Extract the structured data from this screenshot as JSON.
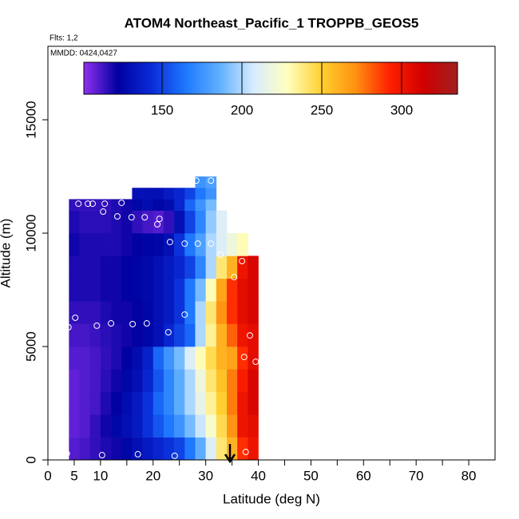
{
  "chart_data": {
    "type": "curtain",
    "title": "ATOM4 Northeast_Pacific_1 TROPPB_GEOS5",
    "flights_label": "Flts: 1,2",
    "dates_label": "MMDD: 0424,0427",
    "xlabel": "Latitude (deg N)",
    "ylabel": "Altitude (m)",
    "xlim": [
      0,
      85
    ],
    "ylim": [
      0,
      18240
    ],
    "xticks": [
      0,
      5,
      10,
      20,
      30,
      40,
      50,
      60,
      70,
      80
    ],
    "xminorticks": [
      15,
      25,
      35,
      45,
      55,
      65,
      75
    ],
    "yticks": [
      0,
      5000,
      10000,
      15000
    ],
    "clim": [
      101,
      335
    ],
    "cticks": [
      150,
      200,
      250,
      300
    ],
    "colormap": [
      "#9030f0",
      "#0000a0",
      "#0a2cd8",
      "#1e78ff",
      "#60b0ff",
      "#d8ecff",
      "#ffffc0",
      "#ffd030",
      "#ff9010",
      "#ff2000",
      "#d00000",
      "#a02020"
    ],
    "lat_edges": [
      4,
      6,
      8,
      10,
      12,
      14,
      16,
      18,
      20,
      22,
      24,
      26,
      28,
      30,
      32,
      34,
      36,
      38,
      40
    ],
    "alt_edges": [
      0,
      1000,
      2000,
      3000,
      4000,
      5000,
      6000,
      7000,
      8000,
      9000,
      10000,
      11000,
      11500,
      12000,
      12500
    ],
    "values": [
      [
        110,
        112,
        115,
        118,
        120,
        125,
        130,
        135,
        140,
        145,
        150,
        165,
        185,
        210,
        240,
        260,
        290,
        300
      ],
      [
        108,
        110,
        115,
        120,
        125,
        130,
        135,
        145,
        155,
        165,
        175,
        190,
        205,
        225,
        245,
        270,
        300,
        305
      ],
      [
        108,
        110,
        112,
        118,
        122,
        128,
        135,
        145,
        160,
        170,
        185,
        200,
        215,
        235,
        250,
        275,
        300,
        310
      ],
      [
        108,
        110,
        112,
        116,
        120,
        125,
        130,
        140,
        155,
        170,
        185,
        200,
        220,
        240,
        255,
        275,
        295,
        310
      ],
      [
        110,
        110,
        112,
        115,
        118,
        122,
        128,
        138,
        160,
        175,
        190,
        210,
        230,
        245,
        260,
        265,
        290,
        305
      ],
      [
        112,
        112,
        114,
        116,
        118,
        120,
        122,
        125,
        130,
        140,
        150,
        160,
        200,
        235,
        260,
        280,
        300,
        305
      ],
      [
        115,
        115,
        115,
        118,
        120,
        120,
        122,
        125,
        130,
        135,
        145,
        165,
        200,
        240,
        270,
        290,
        305,
        310
      ],
      [
        118,
        118,
        118,
        120,
        120,
        122,
        124,
        126,
        130,
        135,
        145,
        165,
        190,
        230,
        265,
        290,
        305,
        310
      ],
      [
        118,
        118,
        118,
        120,
        120,
        122,
        124,
        126,
        130,
        135,
        140,
        150,
        170,
        200,
        240,
        260,
        300,
        310
      ],
      [
        120,
        118,
        118,
        118,
        118,
        120,
        122,
        124,
        125,
        130,
        145,
        165,
        180,
        200,
        210,
        220,
        230,
        null
      ],
      [
        118,
        116,
        116,
        116,
        118,
        120,
        115,
        112,
        110,
        115,
        130,
        150,
        170,
        195,
        210,
        null,
        null,
        null
      ],
      [
        115,
        115,
        115,
        115,
        118,
        120,
        125,
        128,
        125,
        128,
        140,
        160,
        175,
        190,
        null,
        null,
        null,
        null
      ],
      [
        null,
        null,
        null,
        null,
        null,
        null,
        130,
        130,
        130,
        135,
        140,
        150,
        165,
        175,
        null,
        null,
        null,
        null
      ],
      [
        null,
        null,
        null,
        null,
        null,
        null,
        null,
        null,
        null,
        null,
        null,
        null,
        175,
        180,
        null,
        null,
        null,
        null
      ]
    ],
    "points_lat": [
      3.6,
      10.3,
      17.1,
      24.1,
      37.6,
      3.9,
      5.2,
      9.3,
      12,
      16.1,
      18.8,
      22.9,
      26,
      38.4,
      37.3,
      39.5,
      5.8,
      7.6,
      8.5,
      10.8,
      10.5,
      14,
      13.2,
      15.9,
      18.4,
      21.2,
      20.8,
      23.2,
      26,
      28.5,
      31,
      32.8,
      35.4,
      28.2,
      31,
      36.9
    ],
    "points_alt": [
      280,
      210,
      250,
      180,
      350,
      5850,
      6270,
      5920,
      6020,
      5990,
      6020,
      5630,
      6410,
      5490,
      4540,
      4330,
      11300,
      11300,
      11300,
      11300,
      10950,
      11340,
      10740,
      10700,
      10700,
      10630,
      10390,
      9610,
      9540,
      9540,
      9540,
      9050,
      8060,
      12320,
      12320,
      8770
    ]
  }
}
